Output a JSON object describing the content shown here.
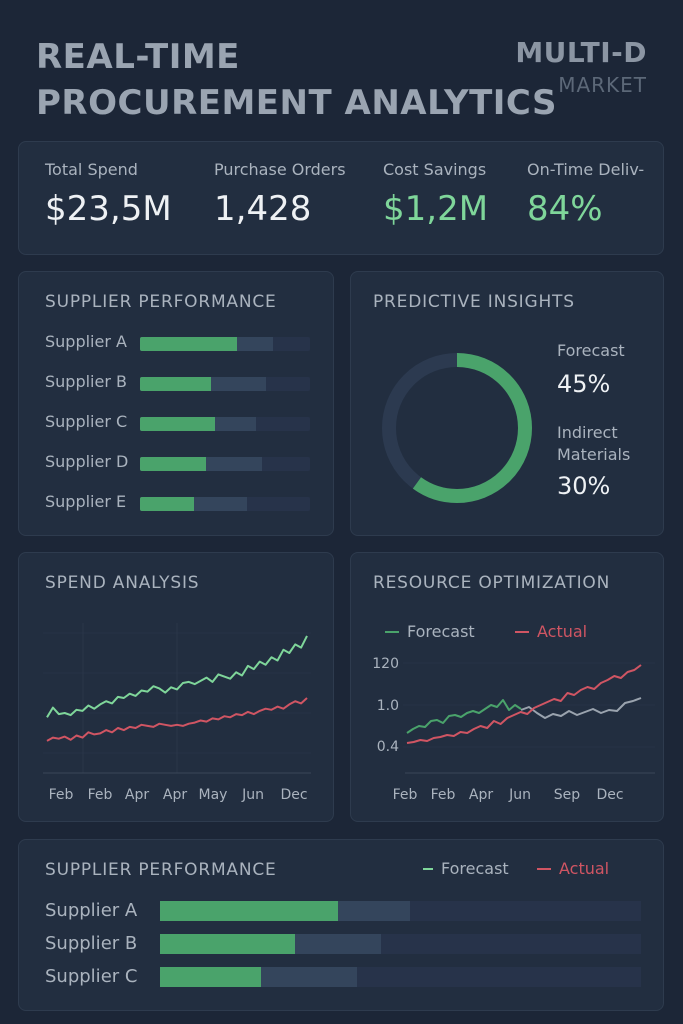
{
  "header": {
    "title_line1": "REAL-TIME",
    "title_line2": "PROCUREMENT ANALYTICS",
    "brand": "MULTI-D",
    "brand_sub": "MARKET"
  },
  "kpis": [
    {
      "label": "Total Spend",
      "value": "$23,5M"
    },
    {
      "label": "Purchase Orders",
      "value": "1,428"
    },
    {
      "label": "Cost Savings",
      "value": "$1,2M"
    },
    {
      "label": "On-Time Deliv-",
      "value": "84%"
    }
  ],
  "colors": {
    "green": "#4aa36b",
    "green_light": "#7fd69a",
    "red": "#d05563",
    "gray": "#9aa3ae",
    "bg": "#1c2637",
    "panel": "#222e40"
  },
  "supplier_performance": {
    "title": "SUPPLIER PERFORMANCE",
    "rows": [
      {
        "label": "Supplier A",
        "value": 0.57,
        "secondary": 0.78
      },
      {
        "label": "Supplier B",
        "value": 0.42,
        "secondary": 0.74
      },
      {
        "label": "Supplier C",
        "value": 0.44,
        "secondary": 0.68
      },
      {
        "label": "Supplier D",
        "value": 0.39,
        "secondary": 0.72
      },
      {
        "label": "Supplier E",
        "value": 0.32,
        "secondary": 0.63
      }
    ]
  },
  "predictive_insights": {
    "title": "PREDICTIVE INSIGHTS",
    "donut_fraction": 0.6,
    "items": [
      {
        "label_lines": [
          "Forecast"
        ],
        "value": "45%"
      },
      {
        "label_lines": [
          "Indirect",
          "Materials"
        ],
        "value": "30%"
      }
    ]
  },
  "chart_data": [
    {
      "type": "line",
      "title": "SPEND ANALYSIS",
      "x_tick_labels": [
        "Feb",
        "Feb",
        "Apr",
        "Apr",
        "May",
        "Jun",
        "Dec"
      ],
      "grid": true,
      "series": [
        {
          "color": "#7fd69a",
          "values": [
            52,
            61,
            55,
            56,
            54,
            59,
            58,
            63,
            60,
            64,
            67,
            65,
            71,
            70,
            74,
            72,
            77,
            76,
            81,
            79,
            75,
            80,
            78,
            84,
            85,
            83,
            86,
            89,
            85,
            92,
            90,
            88,
            94,
            91,
            100,
            97,
            104,
            101,
            108,
            105,
            115,
            112,
            120,
            117,
            128
          ]
        },
        {
          "color": "#d05563",
          "values": [
            30,
            33,
            32,
            34,
            31,
            35,
            33,
            38,
            36,
            37,
            40,
            38,
            42,
            40,
            43,
            42,
            45,
            44,
            43,
            46,
            45,
            44,
            45,
            44,
            46,
            47,
            49,
            48,
            51,
            50,
            53,
            52,
            55,
            54,
            57,
            55,
            58,
            60,
            59,
            62,
            60,
            64,
            67,
            65,
            70
          ]
        }
      ]
    },
    {
      "type": "line",
      "title": "RESOURCE OPTIMIZATION",
      "legend": [
        "Forecast",
        "Actual"
      ],
      "legend_placement": "top-left",
      "y_tick_labels": [
        "120",
        "1.0",
        "0.4"
      ],
      "x_tick_labels": [
        "Feb",
        "Feb",
        "Apr",
        "Jun",
        "Sep",
        "Dec"
      ],
      "series": [
        {
          "name": "Forecast",
          "color": "#4aa36b",
          "values": [
            40,
            44,
            47,
            46,
            52,
            53,
            50,
            57,
            58,
            56,
            60,
            62,
            60,
            64,
            68,
            66,
            73,
            63,
            68,
            64
          ]
        },
        {
          "name": "Actual",
          "color": "#d05563",
          "values": [
            30,
            31,
            33,
            32,
            35,
            36,
            38,
            37,
            41,
            40,
            44,
            47,
            45,
            52,
            49,
            55,
            58,
            61,
            59,
            65,
            68,
            71,
            74,
            72,
            80,
            78,
            83,
            86,
            84,
            90,
            93,
            97,
            95,
            101,
            103,
            108
          ]
        },
        {
          "color": "#9aa3ae",
          "values": [
            63,
            66,
            60,
            55,
            59,
            57,
            62,
            58,
            61,
            64,
            60,
            63,
            62,
            70,
            72,
            75
          ]
        }
      ]
    }
  ],
  "bottom_performance": {
    "title": "SUPPLIER PERFORMANCE",
    "legend": [
      {
        "label": "Forecast",
        "color": "#7fd69a"
      },
      {
        "label": "Actual",
        "color": "#d05563"
      }
    ],
    "rows": [
      {
        "label": "Supplier A",
        "value": 0.37,
        "secondary": 0.52
      },
      {
        "label": "Supplier B",
        "value": 0.28,
        "secondary": 0.46
      },
      {
        "label": "Supplier C",
        "value": 0.21,
        "secondary": 0.41
      }
    ]
  }
}
